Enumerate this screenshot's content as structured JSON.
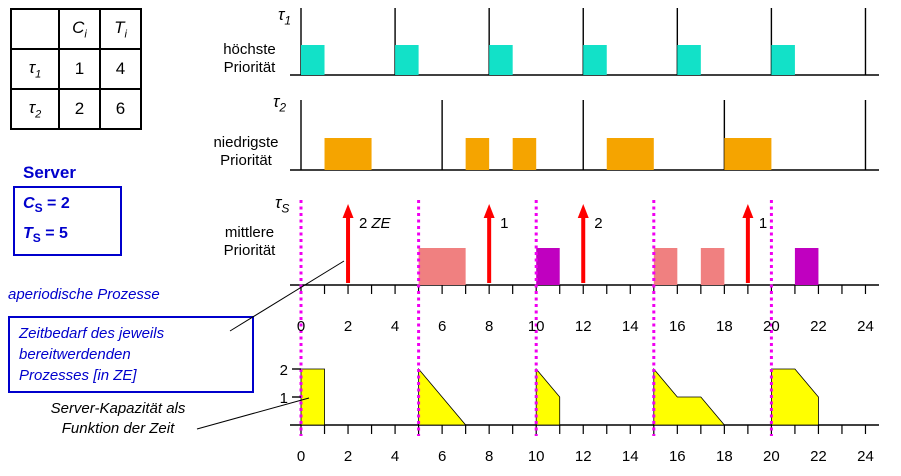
{
  "task_table": {
    "header": {
      "c_base": "C",
      "c_sub": "i",
      "t_base": "T",
      "t_sub": "i"
    },
    "rows": [
      {
        "tau_base": "τ",
        "tau_sub": "1",
        "c": "1",
        "t": "4"
      },
      {
        "tau_base": "τ",
        "tau_sub": "2",
        "c": "2",
        "t": "6"
      }
    ]
  },
  "server_panel": {
    "title": "Server",
    "capacity_base": "C",
    "capacity_sub": "S",
    "capacity_rest": " = 2",
    "period_base": "T",
    "period_sub": "S",
    "period_rest": " = 5"
  },
  "annotations": {
    "aperiodic": "aperiodische Prozesse",
    "zeitbedarf_line1": "Zeitbedarf des jeweils",
    "zeitbedarf_line2": "bereitwerdenden",
    "zeitbedarf_line3": "Prozesses [in ZE]",
    "kapazitaet_line1": "Server-Kapazität als",
    "kapazitaet_line2": "Funktion der Zeit"
  },
  "row_labels": {
    "tau1": {
      "sym_base": "τ",
      "sym_sub": "1",
      "prio_line1": "höchste",
      "prio_line2": "Priorität"
    },
    "tau2": {
      "sym_base": "τ",
      "sym_sub": "2",
      "prio_line1": "niedrigste",
      "prio_line2": "Priorität"
    },
    "tauS": {
      "sym_base": "τ",
      "sym_sub": "S",
      "prio_line1": "mittlere",
      "prio_line2": "Priorität"
    }
  },
  "colors": {
    "tau1_fill": "#12E1C8",
    "tau2_fill": "#F5A400",
    "server_fill_pink": "#F08080",
    "server_fill_purple": "#C000C0",
    "arrow": "#FF0000",
    "replenish_line": "#F000F0",
    "capacity_fill": "#FFFF00",
    "accent_blue": "#0000CC"
  },
  "schedule": {
    "time_labels": [
      "0",
      "2",
      "4",
      "6",
      "8",
      "10",
      "12",
      "14",
      "16",
      "18",
      "20",
      "22",
      "24"
    ],
    "tau1": {
      "period": 4,
      "releases": [
        0,
        4,
        8,
        12,
        16,
        20,
        24
      ],
      "executions": [
        [
          0,
          1
        ],
        [
          4,
          5
        ],
        [
          8,
          9
        ],
        [
          12,
          13
        ],
        [
          16,
          17
        ],
        [
          20,
          21
        ]
      ]
    },
    "tau2": {
      "period": 6,
      "releases": [
        0,
        6,
        12,
        18,
        24
      ],
      "executions": [
        [
          1,
          3
        ],
        [
          7,
          8
        ],
        [
          9,
          10
        ],
        [
          13,
          15
        ],
        [
          18,
          20
        ]
      ]
    },
    "server": {
      "period": 5,
      "replenishments": [
        0,
        5,
        10,
        15,
        20
      ],
      "arrivals": [
        {
          "t": 2,
          "label": "2",
          "unit": "ZE"
        },
        {
          "t": 8,
          "label": "1",
          "unit": ""
        },
        {
          "t": 12,
          "label": "2",
          "unit": ""
        },
        {
          "t": 19,
          "label": "1",
          "unit": ""
        }
      ],
      "executions": [
        {
          "from": 5,
          "to": 7,
          "color": "#F08080"
        },
        {
          "from": 10,
          "to": 11,
          "color": "#C000C0"
        },
        {
          "from": 15,
          "to": 16,
          "color": "#F08080"
        },
        {
          "from": 17,
          "to": 18,
          "color": "#F08080"
        },
        {
          "from": 21,
          "to": 22,
          "color": "#C000C0"
        }
      ]
    },
    "capacity": {
      "axis_labels": [
        "2",
        "1"
      ],
      "shapes": [
        [
          [
            0,
            2
          ],
          [
            1,
            2
          ],
          [
            1,
            0
          ],
          [
            0,
            0
          ]
        ],
        [
          [
            5,
            2
          ],
          [
            7,
            0
          ],
          [
            5,
            0
          ]
        ],
        [
          [
            10,
            2
          ],
          [
            11,
            1
          ],
          [
            11,
            0
          ],
          [
            10,
            0
          ]
        ],
        [
          [
            15,
            2
          ],
          [
            16,
            1
          ],
          [
            17,
            1
          ],
          [
            18,
            0
          ],
          [
            15,
            0
          ]
        ],
        [
          [
            20,
            2
          ],
          [
            21,
            2
          ],
          [
            22,
            1
          ],
          [
            22,
            0
          ],
          [
            20,
            0
          ]
        ]
      ]
    }
  }
}
